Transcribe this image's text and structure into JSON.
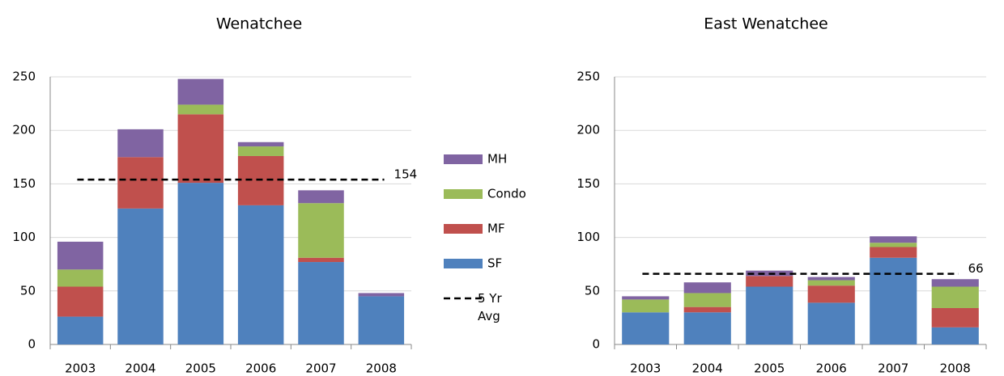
{
  "chart_data": [
    {
      "type": "bar",
      "stacked": true,
      "title": "Wenatchee",
      "categories": [
        "2003",
        "2004",
        "2005",
        "2006",
        "2007",
        "2008"
      ],
      "series": [
        {
          "name": "SF",
          "color": "#4f81bd",
          "values": [
            26,
            127,
            151,
            130,
            77,
            45
          ]
        },
        {
          "name": "MF",
          "color": "#c0504d",
          "values": [
            28,
            48,
            64,
            46,
            4,
            0
          ]
        },
        {
          "name": "Condo",
          "color": "#9bbb59",
          "values": [
            16,
            0,
            9,
            9,
            51,
            0
          ]
        },
        {
          "name": "MH",
          "color": "#8064a2",
          "values": [
            26,
            26,
            24,
            4,
            12,
            3
          ]
        }
      ],
      "avg": 154,
      "avg_label": "5 Yr Avg",
      "ylim": [
        0,
        250
      ],
      "yticks": [
        0,
        50,
        100,
        150,
        200,
        250
      ],
      "grid": true
    },
    {
      "type": "bar",
      "stacked": true,
      "title": "East Wenatchee",
      "categories": [
        "2003",
        "2004",
        "2005",
        "2006",
        "2007",
        "2008"
      ],
      "series": [
        {
          "color": "#4f81bd",
          "values": [
            30,
            30,
            54,
            39,
            81,
            16
          ]
        },
        {
          "color": "#c0504d",
          "values": [
            0,
            5,
            10,
            16,
            10,
            18
          ]
        },
        {
          "color": "#9bbb59",
          "values": [
            12,
            13,
            0,
            5,
            4,
            20
          ]
        },
        {
          "color": "#8064a2",
          "values": [
            3,
            10,
            5,
            3,
            6,
            7
          ]
        }
      ],
      "avg": 66,
      "ylim": [
        0,
        250
      ],
      "yticks": [
        0,
        50,
        100,
        150,
        200,
        250
      ],
      "grid": true
    }
  ]
}
